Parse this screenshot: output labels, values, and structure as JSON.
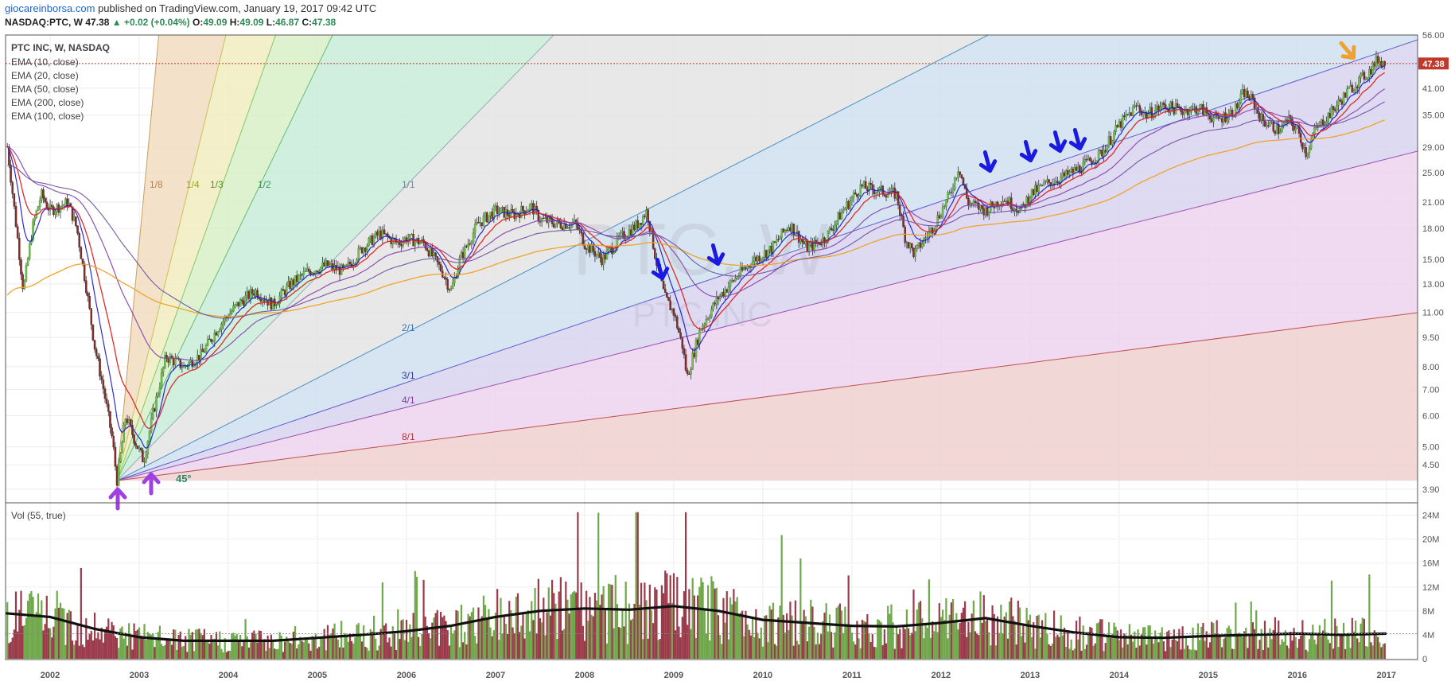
{
  "header": {
    "site": "giocareinborsa.com",
    "published": " published on TradingView.com, January 19, 2017 09:42 UTC",
    "symbol": "NASDAQ:PTC, W",
    "last": "47.38",
    "change": "▲ +0.02 (+0.04%)",
    "o_label": "O:",
    "o_value": "49.09",
    "h_label": "H:",
    "h_value": "49.09",
    "l_label": "L:",
    "l_value": "46.87",
    "c_label": "C:",
    "c_value": "47.38"
  },
  "legend": {
    "title": "PTC INC, W, NASDAQ",
    "items": [
      "EMA (10, close)",
      "EMA (20, close)",
      "EMA (50, close)",
      "EMA (200, close)",
      "EMA (100, close)"
    ]
  },
  "watermark": {
    "symbol": "PTC, W",
    "name": "PTC INC"
  },
  "last_price_tag": "47.38",
  "volume_legend": "Vol (55, true)",
  "gann": {
    "angle_label": "45°",
    "fan_labels": [
      "1/8",
      "1/4",
      "1/3",
      "1/2",
      "1/1",
      "2/1",
      "3/1",
      "4/1",
      "8/1"
    ]
  },
  "chart_data": {
    "type": "candlestick",
    "x_ticks": [
      "2002",
      "2003",
      "2004",
      "2005",
      "2006",
      "2007",
      "2008",
      "2009",
      "2010",
      "2011",
      "2012",
      "2013",
      "2014",
      "2015",
      "2016",
      "2017"
    ],
    "price_axis": [
      "56.00",
      "47.38",
      "41.00",
      "35.00",
      "29.00",
      "25.00",
      "21.00",
      "18.00",
      "15.00",
      "13.00",
      "11.00",
      "9.50",
      "8.00",
      "7.00",
      "6.00",
      "5.00",
      "4.50",
      "3.90"
    ],
    "volume_axis": [
      "24M",
      "20M",
      "16M",
      "12M",
      "8M",
      "4M",
      "0"
    ],
    "ylim": [
      3.6,
      56
    ],
    "y_scale": "log",
    "price_path": [
      [
        2001.5,
        32
      ],
      [
        2001.6,
        20
      ],
      [
        2001.7,
        12.5
      ],
      [
        2001.8,
        18
      ],
      [
        2001.9,
        22
      ],
      [
        2002.0,
        20
      ],
      [
        2002.2,
        21
      ],
      [
        2002.3,
        18
      ],
      [
        2002.4,
        13
      ],
      [
        2002.5,
        9
      ],
      [
        2002.6,
        7
      ],
      [
        2002.7,
        5.2
      ],
      [
        2002.75,
        4.1
      ],
      [
        2002.85,
        6
      ],
      [
        2002.95,
        5.2
      ],
      [
        2003.05,
        4.6
      ],
      [
        2003.15,
        6
      ],
      [
        2003.3,
        8.5
      ],
      [
        2003.5,
        8
      ],
      [
        2003.7,
        8.6
      ],
      [
        2003.9,
        10.2
      ],
      [
        2004.1,
        11.5
      ],
      [
        2004.3,
        12.5
      ],
      [
        2004.5,
        11.5
      ],
      [
        2004.7,
        13
      ],
      [
        2004.9,
        14
      ],
      [
        2005.1,
        14.5
      ],
      [
        2005.3,
        14
      ],
      [
        2005.5,
        16
      ],
      [
        2005.7,
        17.5
      ],
      [
        2005.9,
        16.5
      ],
      [
        2006.0,
        17
      ],
      [
        2006.2,
        16.5
      ],
      [
        2006.4,
        14
      ],
      [
        2006.5,
        12.5
      ],
      [
        2006.6,
        15
      ],
      [
        2006.8,
        18.5
      ],
      [
        2007.0,
        20
      ],
      [
        2007.2,
        19.5
      ],
      [
        2007.4,
        20.5
      ],
      [
        2007.5,
        19
      ],
      [
        2007.7,
        18.5
      ],
      [
        2007.9,
        18.5
      ],
      [
        2008.0,
        16.5
      ],
      [
        2008.2,
        15
      ],
      [
        2008.4,
        17
      ],
      [
        2008.6,
        18.5
      ],
      [
        2008.7,
        20
      ],
      [
        2008.8,
        15
      ],
      [
        2008.9,
        12
      ],
      [
        2009.0,
        11
      ],
      [
        2009.1,
        9
      ],
      [
        2009.15,
        7.5
      ],
      [
        2009.3,
        10
      ],
      [
        2009.5,
        12
      ],
      [
        2009.7,
        13.5
      ],
      [
        2009.9,
        15
      ],
      [
        2010.1,
        16
      ],
      [
        2010.3,
        18.5
      ],
      [
        2010.5,
        16
      ],
      [
        2010.7,
        17
      ],
      [
        2010.9,
        20
      ],
      [
        2011.1,
        23
      ],
      [
        2011.3,
        22.5
      ],
      [
        2011.5,
        22
      ],
      [
        2011.6,
        17
      ],
      [
        2011.7,
        15.5
      ],
      [
        2011.9,
        18
      ],
      [
        2012.1,
        22
      ],
      [
        2012.2,
        26
      ],
      [
        2012.3,
        21
      ],
      [
        2012.5,
        20
      ],
      [
        2012.7,
        21.5
      ],
      [
        2012.9,
        20
      ],
      [
        2013.0,
        22
      ],
      [
        2013.2,
        23.5
      ],
      [
        2013.4,
        24.5
      ],
      [
        2013.6,
        26
      ],
      [
        2013.8,
        28
      ],
      [
        2014.0,
        33
      ],
      [
        2014.2,
        37
      ],
      [
        2014.3,
        35
      ],
      [
        2014.5,
        37
      ],
      [
        2014.7,
        36
      ],
      [
        2014.9,
        36.5
      ],
      [
        2015.1,
        34
      ],
      [
        2015.3,
        36
      ],
      [
        2015.4,
        40
      ],
      [
        2015.5,
        38
      ],
      [
        2015.6,
        34
      ],
      [
        2015.8,
        32
      ],
      [
        2015.9,
        34
      ],
      [
        2016.0,
        32
      ],
      [
        2016.1,
        28
      ],
      [
        2016.2,
        32
      ],
      [
        2016.4,
        36
      ],
      [
        2016.6,
        41
      ],
      [
        2016.8,
        45
      ],
      [
        2016.9,
        48.5
      ],
      [
        2017.0,
        47.38
      ]
    ],
    "volume_series": [
      {
        "name": "Vol (55, true)",
        "avg_path": [
          [
            2001.5,
            7.6
          ],
          [
            2002.0,
            7
          ],
          [
            2002.5,
            5
          ],
          [
            2003.0,
            3.6
          ],
          [
            2003.5,
            3
          ],
          [
            2004.0,
            3
          ],
          [
            2004.5,
            3
          ],
          [
            2005.0,
            3.5
          ],
          [
            2005.5,
            4
          ],
          [
            2006.0,
            4.6
          ],
          [
            2006.5,
            5.5
          ],
          [
            2007.0,
            7
          ],
          [
            2007.5,
            8
          ],
          [
            2008.0,
            8.4
          ],
          [
            2008.5,
            8.2
          ],
          [
            2009.0,
            8.8
          ],
          [
            2009.5,
            8
          ],
          [
            2010.0,
            6.5
          ],
          [
            2010.5,
            6
          ],
          [
            2011.0,
            5.5
          ],
          [
            2011.5,
            5.4
          ],
          [
            2012.0,
            6
          ],
          [
            2012.5,
            6.8
          ],
          [
            2013.0,
            5.5
          ],
          [
            2013.5,
            4.4
          ],
          [
            2014.0,
            3.6
          ],
          [
            2014.5,
            3.5
          ],
          [
            2015.0,
            3.8
          ],
          [
            2015.5,
            4
          ],
          [
            2016.0,
            4.2
          ],
          [
            2016.5,
            4
          ],
          [
            2017.0,
            4.2
          ]
        ]
      }
    ]
  }
}
